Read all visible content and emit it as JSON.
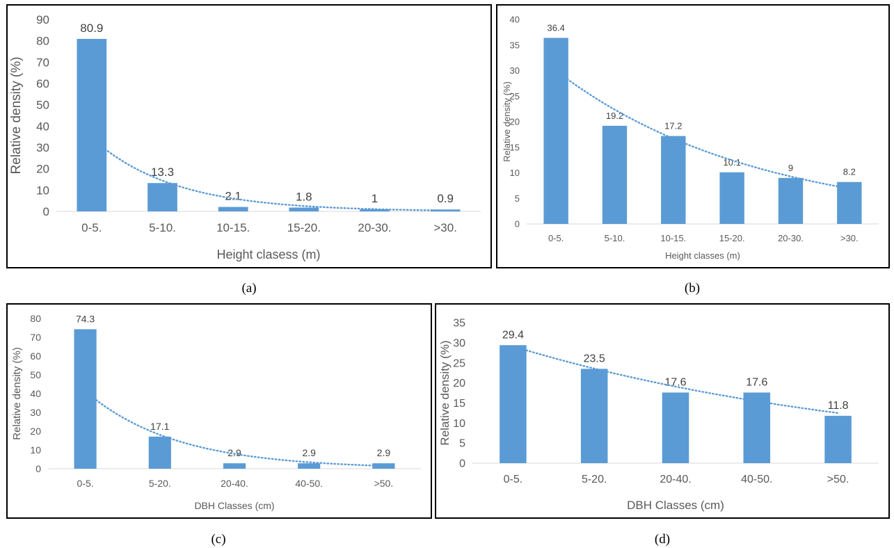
{
  "chart_data": [
    {
      "type": "bar",
      "caption": "(a)",
      "categories": [
        "0-5.",
        "5-10.",
        "10-15.",
        "15-20.",
        "20-30.",
        ">30."
      ],
      "values": [
        80.9,
        13.3,
        2.1,
        1.8,
        1,
        0.9
      ],
      "data_labels": [
        "80.9",
        "13.3",
        "2.1",
        "1.8",
        "1",
        "0.9"
      ],
      "trendline": "exponential, dotted",
      "xlabel": "Height clasess (m)",
      "ylabel": "Relative density (%)",
      "ylim": [
        0,
        90
      ],
      "yticks": [
        0,
        10,
        20,
        30,
        40,
        50,
        60,
        70,
        80,
        90
      ],
      "grid": false,
      "bar_color": "#5b9bd5"
    },
    {
      "type": "bar",
      "caption": "(b)",
      "categories": [
        "0-5.",
        "5-10.",
        "10-15.",
        "15-20.",
        "20-30.",
        ">30."
      ],
      "values": [
        36.4,
        19.2,
        17.2,
        10.1,
        9,
        8.2
      ],
      "data_labels": [
        "36.4",
        "19.2",
        "17.2",
        "10.1",
        "9",
        "8.2"
      ],
      "trendline": "exponential, dotted",
      "xlabel": "Height classes (m)",
      "ylabel": "Relative density (%)",
      "ylim": [
        0,
        40
      ],
      "yticks": [
        0,
        5,
        10,
        15,
        20,
        25,
        30,
        35,
        40
      ],
      "grid": false,
      "bar_color": "#5b9bd5"
    },
    {
      "type": "bar",
      "caption": "(c)",
      "categories": [
        "0-5.",
        "5-20.",
        "20-40.",
        "40-50.",
        ">50."
      ],
      "values": [
        74.3,
        17.1,
        2.9,
        2.9,
        2.9
      ],
      "data_labels": [
        "74.3",
        "17.1",
        "2.9",
        "2.9",
        "2.9"
      ],
      "trendline": "exponential, dotted",
      "xlabel": "DBH Classes (cm)",
      "ylabel": "Relative density (%)",
      "ylim": [
        0,
        80
      ],
      "yticks": [
        0,
        10,
        20,
        30,
        40,
        50,
        60,
        70,
        80
      ],
      "grid": false,
      "bar_color": "#5b9bd5"
    },
    {
      "type": "bar",
      "caption": "(d)",
      "categories": [
        "0-5.",
        "5-20.",
        "20-40.",
        "40-50.",
        ">50."
      ],
      "values": [
        29.4,
        23.5,
        17.6,
        17.6,
        11.8
      ],
      "data_labels": [
        "29.4",
        "23.5",
        "17.6",
        "17.6",
        "11.8"
      ],
      "trendline": "exponential, dotted",
      "xlabel": "DBH Classes (cm)",
      "ylabel": "Relative density (%)",
      "ylim": [
        0,
        35
      ],
      "yticks": [
        0,
        5,
        10,
        15,
        20,
        25,
        30,
        35
      ],
      "grid": false,
      "bar_color": "#5b9bd5"
    }
  ]
}
